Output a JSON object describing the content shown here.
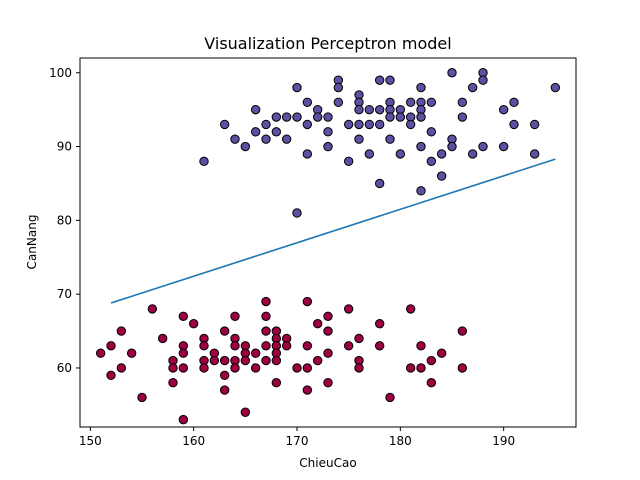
{
  "chart_data": {
    "type": "scatter",
    "title": "Visualization Perceptron model",
    "xlabel": "ChieuCao",
    "ylabel": "CanNang",
    "xlim": [
      149,
      197
    ],
    "ylim": [
      52,
      102
    ],
    "xticks": [
      150,
      160,
      170,
      180,
      190
    ],
    "yticks": [
      60,
      70,
      80,
      90,
      100
    ],
    "grid": false,
    "colors": {
      "class_high": "#5e4fa2",
      "class_low": "#9e0142",
      "line": "#1f77b4",
      "edge": "#000000"
    },
    "series": [
      {
        "color": "#5e4fa2",
        "points": [
          [
            161,
            88
          ],
          [
            163,
            93
          ],
          [
            164,
            91
          ],
          [
            165,
            90
          ],
          [
            166,
            92
          ],
          [
            166,
            95
          ],
          [
            167,
            93
          ],
          [
            167,
            91
          ],
          [
            168,
            94
          ],
          [
            168,
            92
          ],
          [
            169,
            94
          ],
          [
            169,
            91
          ],
          [
            170,
            98
          ],
          [
            170,
            94
          ],
          [
            170,
            81
          ],
          [
            171,
            96
          ],
          [
            171,
            93
          ],
          [
            171,
            89
          ],
          [
            172,
            95
          ],
          [
            172,
            94
          ],
          [
            173,
            94
          ],
          [
            173,
            92
          ],
          [
            173,
            90
          ],
          [
            174,
            99
          ],
          [
            174,
            98
          ],
          [
            174,
            96
          ],
          [
            175,
            93
          ],
          [
            175,
            88
          ],
          [
            176,
            97
          ],
          [
            176,
            96
          ],
          [
            176,
            95
          ],
          [
            176,
            93
          ],
          [
            176,
            91
          ],
          [
            177,
            95
          ],
          [
            177,
            93
          ],
          [
            177,
            89
          ],
          [
            178,
            99
          ],
          [
            178,
            95
          ],
          [
            178,
            93
          ],
          [
            178,
            85
          ],
          [
            179,
            99
          ],
          [
            179,
            96
          ],
          [
            179,
            95
          ],
          [
            179,
            94
          ],
          [
            179,
            91
          ],
          [
            180,
            95
          ],
          [
            180,
            94
          ],
          [
            180,
            89
          ],
          [
            181,
            96
          ],
          [
            181,
            94
          ],
          [
            181,
            93
          ],
          [
            182,
            98
          ],
          [
            182,
            96
          ],
          [
            182,
            95
          ],
          [
            182,
            94
          ],
          [
            182,
            90
          ],
          [
            182,
            84
          ],
          [
            183,
            96
          ],
          [
            183,
            92
          ],
          [
            183,
            88
          ],
          [
            184,
            89
          ],
          [
            184,
            86
          ],
          [
            185,
            100
          ],
          [
            185,
            91
          ],
          [
            185,
            90
          ],
          [
            186,
            96
          ],
          [
            186,
            94
          ],
          [
            187,
            98
          ],
          [
            187,
            89
          ],
          [
            188,
            100
          ],
          [
            188,
            99
          ],
          [
            188,
            90
          ],
          [
            190,
            95
          ],
          [
            190,
            90
          ],
          [
            191,
            96
          ],
          [
            191,
            93
          ],
          [
            193,
            93
          ],
          [
            193,
            89
          ],
          [
            195,
            98
          ]
        ]
      },
      {
        "color": "#9e0142",
        "points": [
          [
            151,
            62
          ],
          [
            152,
            63
          ],
          [
            152,
            59
          ],
          [
            153,
            65
          ],
          [
            153,
            60
          ],
          [
            154,
            62
          ],
          [
            155,
            56
          ],
          [
            156,
            68
          ],
          [
            157,
            64
          ],
          [
            158,
            61
          ],
          [
            158,
            60
          ],
          [
            158,
            58
          ],
          [
            159,
            67
          ],
          [
            159,
            63
          ],
          [
            159,
            62
          ],
          [
            159,
            60
          ],
          [
            159,
            53
          ],
          [
            160,
            66
          ],
          [
            161,
            64
          ],
          [
            161,
            63
          ],
          [
            161,
            61
          ],
          [
            161,
            60
          ],
          [
            162,
            62
          ],
          [
            162,
            61
          ],
          [
            163,
            65
          ],
          [
            163,
            61
          ],
          [
            163,
            59
          ],
          [
            163,
            57
          ],
          [
            164,
            67
          ],
          [
            164,
            64
          ],
          [
            164,
            63
          ],
          [
            164,
            61
          ],
          [
            164,
            60
          ],
          [
            165,
            63
          ],
          [
            165,
            62
          ],
          [
            165,
            61
          ],
          [
            165,
            54
          ],
          [
            166,
            62
          ],
          [
            166,
            60
          ],
          [
            167,
            69
          ],
          [
            167,
            67
          ],
          [
            167,
            65
          ],
          [
            167,
            63
          ],
          [
            167,
            61
          ],
          [
            168,
            65
          ],
          [
            168,
            64
          ],
          [
            168,
            63
          ],
          [
            168,
            62
          ],
          [
            168,
            61
          ],
          [
            168,
            58
          ],
          [
            169,
            64
          ],
          [
            169,
            63
          ],
          [
            170,
            60
          ],
          [
            171,
            69
          ],
          [
            171,
            63
          ],
          [
            171,
            60
          ],
          [
            171,
            57
          ],
          [
            172,
            66
          ],
          [
            172,
            61
          ],
          [
            173,
            67
          ],
          [
            173,
            65
          ],
          [
            173,
            62
          ],
          [
            173,
            58
          ],
          [
            175,
            68
          ],
          [
            175,
            63
          ],
          [
            176,
            64
          ],
          [
            176,
            61
          ],
          [
            176,
            60
          ],
          [
            178,
            66
          ],
          [
            178,
            63
          ],
          [
            179,
            56
          ],
          [
            181,
            68
          ],
          [
            181,
            60
          ],
          [
            182,
            63
          ],
          [
            182,
            60
          ],
          [
            183,
            61
          ],
          [
            183,
            58
          ],
          [
            184,
            62
          ],
          [
            186,
            65
          ],
          [
            186,
            60
          ]
        ]
      }
    ],
    "line": {
      "x": [
        152,
        195
      ],
      "y": [
        68.8,
        88.3
      ]
    }
  }
}
